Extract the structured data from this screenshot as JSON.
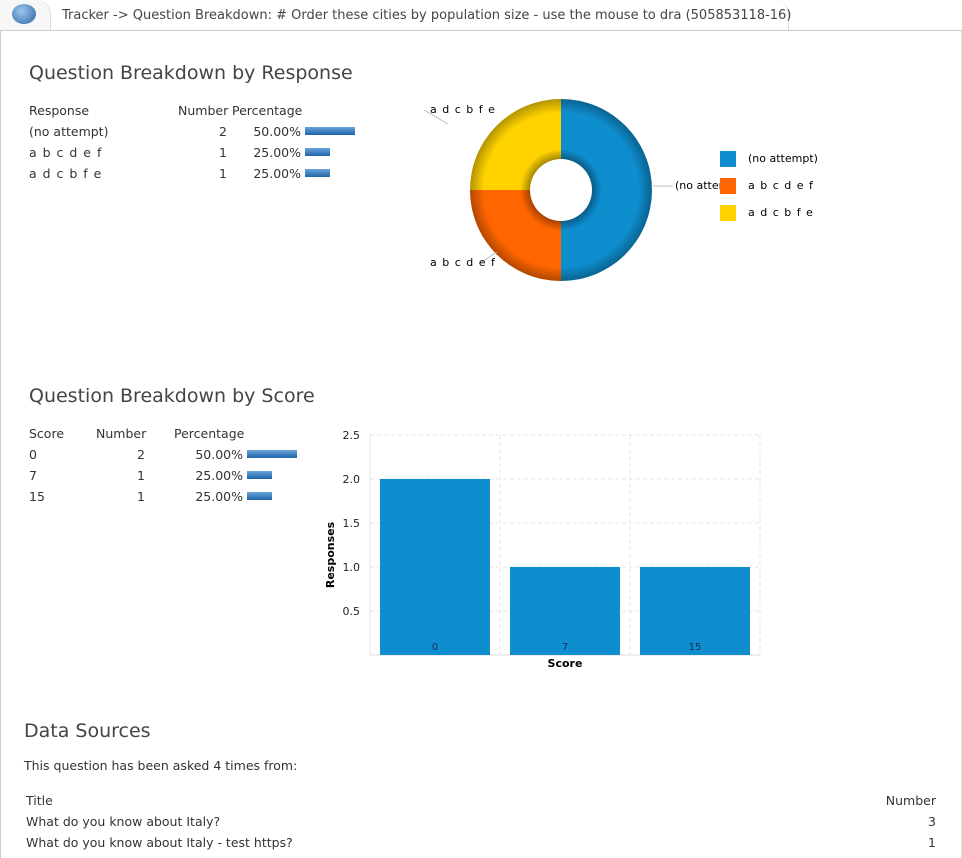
{
  "header": {
    "breadcrumb": "Tracker -> Question Breakdown: # Order these cities by population size - use the mouse to dra (505853118-16)",
    "logo_icon": "questionwriter-logo"
  },
  "response_section": {
    "title": "Question Breakdown by Response",
    "columns": [
      "Response",
      "Number",
      "Percentage"
    ],
    "rows": [
      {
        "response": "(no attempt)",
        "number": "2",
        "percentage": "50.00%",
        "fraction": 0.5
      },
      {
        "response": "a b c d e f",
        "number": "1",
        "percentage": "25.00%",
        "fraction": 0.25
      },
      {
        "response": "a d c b f e",
        "number": "1",
        "percentage": "25.00%",
        "fraction": 0.25
      }
    ]
  },
  "chart_data": [
    {
      "type": "pie",
      "donut": true,
      "labels": [
        "(no attempt)",
        "a b c d e f",
        "a d c b f e"
      ],
      "values": [
        2,
        1,
        1
      ],
      "colors": [
        "#0e8ecf",
        "#ff6600",
        "#ffd200"
      ],
      "slice_labels": [
        "(no attem",
        "a b c d e f",
        "a d c b f e"
      ],
      "legend": {
        "placement": "right",
        "entries": [
          "(no attempt)",
          "a b c d e f",
          "a d c b f e"
        ]
      }
    },
    {
      "type": "bar",
      "categories": [
        "0",
        "7",
        "15"
      ],
      "values": [
        2,
        1,
        1
      ],
      "xlabel": "Score",
      "ylabel": "Responses",
      "ylim": [
        0,
        2.5
      ],
      "yticks": [
        "0.5",
        "1.0",
        "1.5",
        "2.0",
        "2.5"
      ],
      "grid": true,
      "color": "#0e8ecf"
    }
  ],
  "score_section": {
    "title": "Question Breakdown by Score",
    "columns": [
      "Score",
      "Number",
      "Percentage"
    ],
    "rows": [
      {
        "score": "0",
        "number": "2",
        "percentage": "50.00%",
        "fraction": 0.5
      },
      {
        "score": "7",
        "number": "1",
        "percentage": "25.00%",
        "fraction": 0.25
      },
      {
        "score": "15",
        "number": "1",
        "percentage": "25.00%",
        "fraction": 0.25
      }
    ]
  },
  "data_sources": {
    "title": "Data Sources",
    "intro": "This question has been asked 4 times from:",
    "columns": [
      "Title",
      "Number"
    ],
    "rows": [
      {
        "title": "What do you know about Italy?",
        "number": "3"
      },
      {
        "title": "What do you know about Italy - test https?",
        "number": "1"
      }
    ]
  }
}
